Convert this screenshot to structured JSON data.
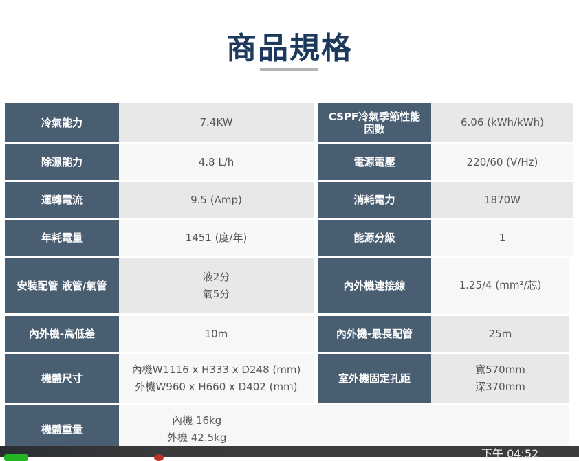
{
  "title": "商品規格",
  "rows": [
    {
      "l1": "冷氣能力",
      "v1": [
        "7.4KW"
      ],
      "l2": "CSPF冷氣季節性能因數",
      "v2": [
        "6.06 (kWh/kWh)"
      ]
    },
    {
      "l1": "除濕能力",
      "v1": [
        "4.8 L/h"
      ],
      "l2": "電源電壓",
      "v2": [
        "220/60 (V/Hz)"
      ]
    },
    {
      "l1": "運轉電流",
      "v1": [
        "9.5 (Amp)"
      ],
      "l2": "消耗電力",
      "v2": [
        "1870W"
      ]
    },
    {
      "l1": "年耗電量",
      "v1": [
        "1451 (度/年)"
      ],
      "l2": "能源分級",
      "v2": [
        "1"
      ]
    },
    {
      "l1": "安裝配管 液管/氣管",
      "v1": [
        "液2分",
        "氣5分"
      ],
      "l2": "內外機連接線",
      "v2": [
        "1.25/4 (mm²/芯)"
      ]
    },
    {
      "l1": "內外機-高低差",
      "v1": [
        "10m"
      ],
      "l2": "內外機-最長配管",
      "v2": [
        "25m"
      ]
    },
    {
      "l1": "機體尺寸",
      "v1": [
        "內機W1116 x H333 x D248 (mm)",
        "外機W960 x H660 x D402 (mm)"
      ],
      "l2": "室外機固定孔距",
      "v2": [
        "寬570mm",
        "深370mm"
      ]
    },
    {
      "l1": "機體重量",
      "v1": [
        "內機 16kg",
        "外機 42.5kg"
      ]
    }
  ],
  "taskbar": {
    "clock": "下午 04:52"
  }
}
